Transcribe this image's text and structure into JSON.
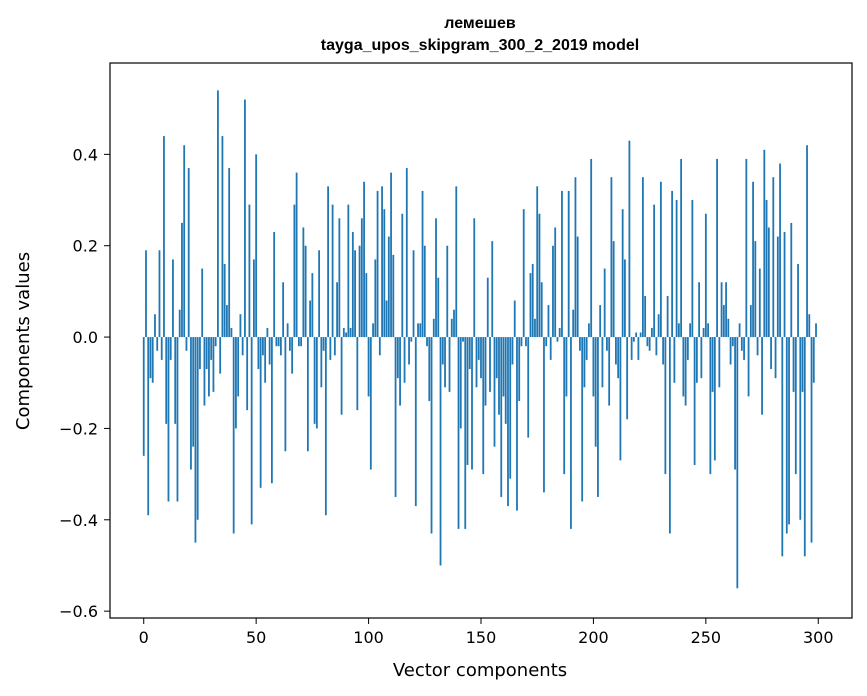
{
  "chart_data": {
    "type": "bar",
    "title": "лемешев",
    "subtitle": "tayga_upos_skipgram_300_2_2019 model",
    "xlabel": "Vector components",
    "ylabel": "Components values",
    "xlim": [
      -15,
      315
    ],
    "ylim": [
      -0.615,
      0.6
    ],
    "xticks": [
      0,
      50,
      100,
      150,
      200,
      250,
      300
    ],
    "xtick_labels": [
      "0",
      "50",
      "100",
      "150",
      "200",
      "250",
      "300"
    ],
    "yticks": [
      -0.6,
      -0.4,
      -0.2,
      0.0,
      0.2,
      0.4
    ],
    "ytick_labels": [
      "−0.6",
      "−0.4",
      "−0.2",
      "0.0",
      "0.2",
      "0.4"
    ],
    "bar_color": "#1f77b4",
    "grid": false,
    "legend": "none",
    "series": [
      {
        "x_start": 0,
        "values": [
          -0.26,
          0.19,
          -0.39,
          -0.09,
          -0.1,
          0.05,
          -0.03,
          0.19,
          -0.05,
          0.44,
          -0.19,
          -0.36,
          -0.05,
          0.17,
          -0.19,
          -0.36,
          0.06,
          0.25,
          0.42,
          -0.03,
          0.37,
          -0.29,
          -0.24,
          -0.45,
          -0.4,
          -0.07,
          0.15,
          -0.15,
          -0.07,
          -0.13,
          -0.05,
          -0.12,
          -0.02,
          0.54,
          -0.08,
          0.44,
          0.16,
          0.07,
          0.37,
          0.02,
          -0.43,
          -0.2,
          -0.13,
          0.05,
          -0.04,
          0.52,
          -0.16,
          0.29,
          -0.41,
          0.17,
          0.4,
          -0.07,
          -0.33,
          -0.04,
          -0.1,
          0.02,
          -0.06,
          -0.32,
          0.23,
          -0.02,
          -0.02,
          -0.04,
          0.12,
          -0.25,
          0.03,
          -0.03,
          -0.08,
          0.29,
          0.36,
          -0.02,
          -0.02,
          0.24,
          0.2,
          -0.25,
          0.08,
          0.14,
          -0.19,
          -0.2,
          0.19,
          -0.11,
          -0.03,
          -0.39,
          0.33,
          -0.05,
          0.29,
          -0.04,
          0.12,
          0.26,
          -0.17,
          0.02,
          0.01,
          0.29,
          0.02,
          0.23,
          0.19,
          -0.16,
          0.2,
          0.26,
          0.34,
          0.14,
          -0.13,
          -0.29,
          0.03,
          0.17,
          0.32,
          -0.04,
          0.33,
          0.28,
          0.08,
          0.22,
          0.36,
          0.18,
          -0.35,
          -0.09,
          -0.15,
          0.27,
          -0.1,
          0.37,
          -0.06,
          -0.01,
          0.19,
          -0.37,
          0.03,
          0.03,
          0.32,
          0.2,
          -0.02,
          -0.14,
          -0.43,
          0.04,
          0.26,
          0.13,
          -0.5,
          -0.06,
          -0.11,
          0.2,
          -0.12,
          0.04,
          0.06,
          0.33,
          -0.42,
          -0.2,
          -0.01,
          -0.42,
          -0.28,
          -0.07,
          -0.29,
          0.26,
          -0.11,
          -0.05,
          -0.09,
          -0.3,
          -0.15,
          0.13,
          -0.12,
          0.21,
          -0.24,
          -0.09,
          -0.17,
          -0.35,
          -0.13,
          -0.19,
          -0.37,
          -0.31,
          -0.06,
          0.08,
          -0.38,
          -0.14,
          -0.02,
          0.28,
          -0.02,
          -0.22,
          0.14,
          0.16,
          0.04,
          0.33,
          0.27,
          0.12,
          -0.34,
          -0.02,
          0.07,
          -0.05,
          0.2,
          0.24,
          -0.01,
          0.02,
          0.32,
          -0.3,
          -0.13,
          0.32,
          -0.42,
          0.06,
          0.35,
          0.22,
          -0.03,
          -0.36,
          -0.11,
          -0.05,
          0.03,
          0.39,
          -0.13,
          -0.24,
          -0.35,
          0.07,
          -0.11,
          0.15,
          -0.03,
          -0.15,
          0.35,
          0.21,
          -0.06,
          -0.09,
          -0.27,
          0.28,
          0.17,
          -0.18,
          0.43,
          -0.05,
          -0.01,
          0.01,
          -0.05,
          0.01,
          0.35,
          0.09,
          -0.02,
          -0.03,
          0.02,
          0.29,
          -0.04,
          0.05,
          0.34,
          -0.06,
          -0.3,
          0.09,
          -0.43,
          0.32,
          -0.1,
          0.3,
          0.03,
          0.39,
          -0.13,
          -0.15,
          -0.05,
          0.03,
          0.3,
          -0.28,
          -0.1,
          0.12,
          -0.09,
          0.02,
          0.27,
          0.03,
          -0.3,
          -0.12,
          -0.27,
          0.39,
          -0.11,
          0.12,
          0.07,
          0.12,
          0.04,
          -0.06,
          -0.02,
          -0.29,
          -0.55,
          0.03,
          -0.03,
          -0.05,
          0.39,
          -0.13,
          0.07,
          0.34,
          0.21,
          -0.04,
          0.15,
          -0.17,
          0.41,
          0.3,
          0.24,
          -0.07,
          0.35,
          -0.09,
          0.22,
          0.38,
          -0.48,
          0.23,
          -0.43,
          -0.41,
          0.25,
          -0.12,
          -0.3,
          0.16,
          -0.4,
          -0.12,
          -0.48,
          0.42,
          0.05,
          -0.45,
          -0.1,
          0.03
        ]
      }
    ]
  }
}
